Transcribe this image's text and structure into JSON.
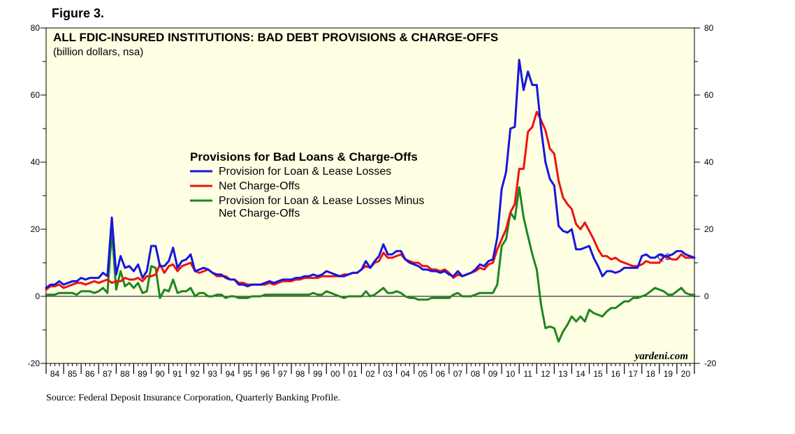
{
  "figure_label": "Figure 3.",
  "source": "Source: Federal Deposit Insurance Corporation, Quarterly Banking Profile.",
  "colors": {
    "background": "#ffffe4",
    "blue": "#1515e0",
    "red": "#ee1111",
    "green": "#1e861e"
  },
  "chart_data": {
    "type": "line",
    "title": "ALL FDIC-INSURED INSTITUTIONS: BAD DEBT PROVISIONS & CHARGE-OFFS",
    "subtitle": "(billion dollars, nsa)",
    "legend_title": "Provisions for Bad Loans & Charge-Offs",
    "watermark": "yardeni.com",
    "end_label": "Q3",
    "ylim": [
      -20,
      80
    ],
    "yticks": [
      -20,
      0,
      20,
      40,
      60,
      80
    ],
    "xlim": [
      1984,
      2021
    ],
    "year_ticks": [
      "84",
      "85",
      "86",
      "87",
      "88",
      "89",
      "90",
      "91",
      "92",
      "93",
      "94",
      "95",
      "96",
      "97",
      "98",
      "99",
      "00",
      "01",
      "02",
      "03",
      "04",
      "05",
      "06",
      "07",
      "08",
      "09",
      "10",
      "11",
      "12",
      "13",
      "14",
      "15",
      "16",
      "17",
      "18",
      "19",
      "20"
    ],
    "series": [
      {
        "name": "Provision for Loan & Lease Losses",
        "color": "#1515e0",
        "x_start": 1984.0,
        "x_step": 0.25,
        "values": [
          2.5,
          3.5,
          3.5,
          4.5,
          3.5,
          4.0,
          4.5,
          4.5,
          5.5,
          5.0,
          5.5,
          5.5,
          5.5,
          7.0,
          6.0,
          23.5,
          6.5,
          12.0,
          8.5,
          9.0,
          7.5,
          9.5,
          5.5,
          7.5,
          15.0,
          15.0,
          9.0,
          9.0,
          10.5,
          14.5,
          8.5,
          10.5,
          11.0,
          12.5,
          7.5,
          8.0,
          8.5,
          8.0,
          7.0,
          6.5,
          6.5,
          5.5,
          5.0,
          5.0,
          3.5,
          3.5,
          3.0,
          3.5,
          3.5,
          3.5,
          4.0,
          4.5,
          4.0,
          4.5,
          5.0,
          5.0,
          5.0,
          5.5,
          5.5,
          6.0,
          6.0,
          6.5,
          6.0,
          6.5,
          7.5,
          7.0,
          6.5,
          6.0,
          6.0,
          6.5,
          7.0,
          7.0,
          8.0,
          10.5,
          8.5,
          10.5,
          12.0,
          15.5,
          12.5,
          12.5,
          13.5,
          13.5,
          11.0,
          10.0,
          9.5,
          9.0,
          8.0,
          8.0,
          7.5,
          7.5,
          7.0,
          7.5,
          6.5,
          6.0,
          7.5,
          6.0,
          6.5,
          7.0,
          8.0,
          9.5,
          9.0,
          10.5,
          11.0,
          17.5,
          32.0,
          37.0,
          50.0,
          50.5,
          70.5,
          61.5,
          67.0,
          63.0,
          63.0,
          50.0,
          40.0,
          35.0,
          33.0,
          21.0,
          19.5,
          19.0,
          20.0,
          14.0,
          14.0,
          14.5,
          15.0,
          11.5,
          9.0,
          6.0,
          7.5,
          7.5,
          7.0,
          7.5,
          8.5,
          8.5,
          8.5,
          8.5,
          12.0,
          12.5,
          11.5,
          11.5,
          12.5,
          12.0,
          12.0,
          12.5,
          13.5,
          13.5,
          12.5,
          12.0,
          11.5
        ]
      },
      {
        "name": "Net Charge-Offs",
        "color": "#ee1111",
        "x_start": 1984.0,
        "x_step": 0.25,
        "values": [
          2.0,
          3.0,
          3.0,
          3.5,
          2.5,
          3.0,
          3.5,
          4.0,
          4.0,
          3.5,
          4.0,
          4.5,
          4.0,
          4.5,
          5.0,
          4.0,
          4.5,
          4.5,
          5.5,
          5.0,
          5.0,
          5.5,
          4.5,
          6.0,
          6.0,
          6.5,
          9.5,
          7.0,
          9.0,
          9.5,
          7.5,
          9.0,
          9.5,
          10.0,
          7.5,
          7.0,
          7.5,
          8.0,
          7.0,
          6.0,
          6.0,
          6.0,
          5.0,
          5.0,
          4.0,
          4.0,
          3.5,
          3.5,
          3.5,
          3.5,
          3.5,
          4.0,
          3.5,
          4.0,
          4.5,
          4.5,
          4.5,
          5.0,
          5.0,
          5.5,
          5.5,
          5.5,
          5.5,
          6.0,
          6.0,
          6.0,
          6.0,
          6.0,
          6.5,
          6.5,
          7.0,
          7.0,
          8.0,
          9.0,
          8.5,
          10.0,
          10.5,
          13.0,
          11.5,
          11.5,
          12.0,
          12.5,
          11.0,
          10.5,
          10.0,
          10.0,
          9.0,
          9.0,
          8.0,
          8.0,
          7.5,
          8.0,
          7.0,
          5.5,
          6.5,
          6.0,
          6.5,
          7.0,
          7.5,
          8.5,
          8.0,
          9.5,
          10.0,
          14.0,
          17.0,
          20.0,
          25.0,
          27.5,
          38.0,
          38.0,
          49.0,
          50.5,
          55.0,
          52.5,
          49.5,
          44.0,
          42.5,
          34.5,
          29.5,
          27.5,
          26.0,
          21.5,
          20.0,
          22.0,
          19.5,
          17.0,
          14.0,
          12.0,
          12.0,
          11.0,
          11.5,
          10.5,
          10.0,
          9.5,
          9.0,
          9.0,
          9.5,
          10.5,
          10.0,
          10.0,
          10.0,
          12.0,
          11.5,
          11.0,
          11.0,
          12.5,
          11.5,
          11.5,
          11.5
        ]
      },
      {
        "name": "Provision for Loan & Lease Losses Minus Net Charge-Offs",
        "color": "#1e861e",
        "x_start": 1984.0,
        "x_step": 0.25,
        "values": [
          0.5,
          0.5,
          0.5,
          1.0,
          1.0,
          1.0,
          1.0,
          0.5,
          1.5,
          1.5,
          1.5,
          1.0,
          1.5,
          2.5,
          1.0,
          19.5,
          2.0,
          7.5,
          3.0,
          4.0,
          2.5,
          4.0,
          1.0,
          1.5,
          9.0,
          8.5,
          -0.5,
          2.0,
          1.5,
          5.0,
          1.0,
          1.5,
          1.5,
          2.5,
          0.0,
          1.0,
          1.0,
          0.0,
          0.0,
          0.5,
          0.5,
          -0.5,
          0.0,
          0.0,
          -0.5,
          -0.5,
          -0.5,
          0.0,
          0.0,
          0.0,
          0.5,
          0.5,
          0.5,
          0.5,
          0.5,
          0.5,
          0.5,
          0.5,
          0.5,
          0.5,
          0.5,
          1.0,
          0.5,
          0.5,
          1.5,
          1.0,
          0.5,
          0.0,
          -0.5,
          0.0,
          0.0,
          0.0,
          0.0,
          1.5,
          0.0,
          0.5,
          1.5,
          2.5,
          1.0,
          1.0,
          1.5,
          1.0,
          0.0,
          -0.5,
          -0.5,
          -1.0,
          -1.0,
          -1.0,
          -0.5,
          -0.5,
          -0.5,
          -0.5,
          -0.5,
          0.5,
          1.0,
          0.0,
          0.0,
          0.0,
          0.5,
          1.0,
          1.0,
          1.0,
          1.0,
          3.5,
          15.0,
          17.0,
          25.0,
          23.0,
          32.5,
          23.5,
          18.0,
          12.5,
          8.0,
          -2.5,
          -9.5,
          -9.0,
          -9.5,
          -13.5,
          -10.5,
          -8.5,
          -6.0,
          -7.5,
          -6.0,
          -7.5,
          -4.0,
          -5.0,
          -5.5,
          -6.0,
          -4.5,
          -3.5,
          -3.5,
          -2.5,
          -1.5,
          -1.5,
          -0.5,
          -0.5,
          0.0,
          0.5,
          1.5,
          2.5,
          2.0,
          1.5,
          0.5,
          0.5,
          1.5,
          2.5,
          1.0,
          0.5,
          0.5
        ]
      }
    ]
  }
}
